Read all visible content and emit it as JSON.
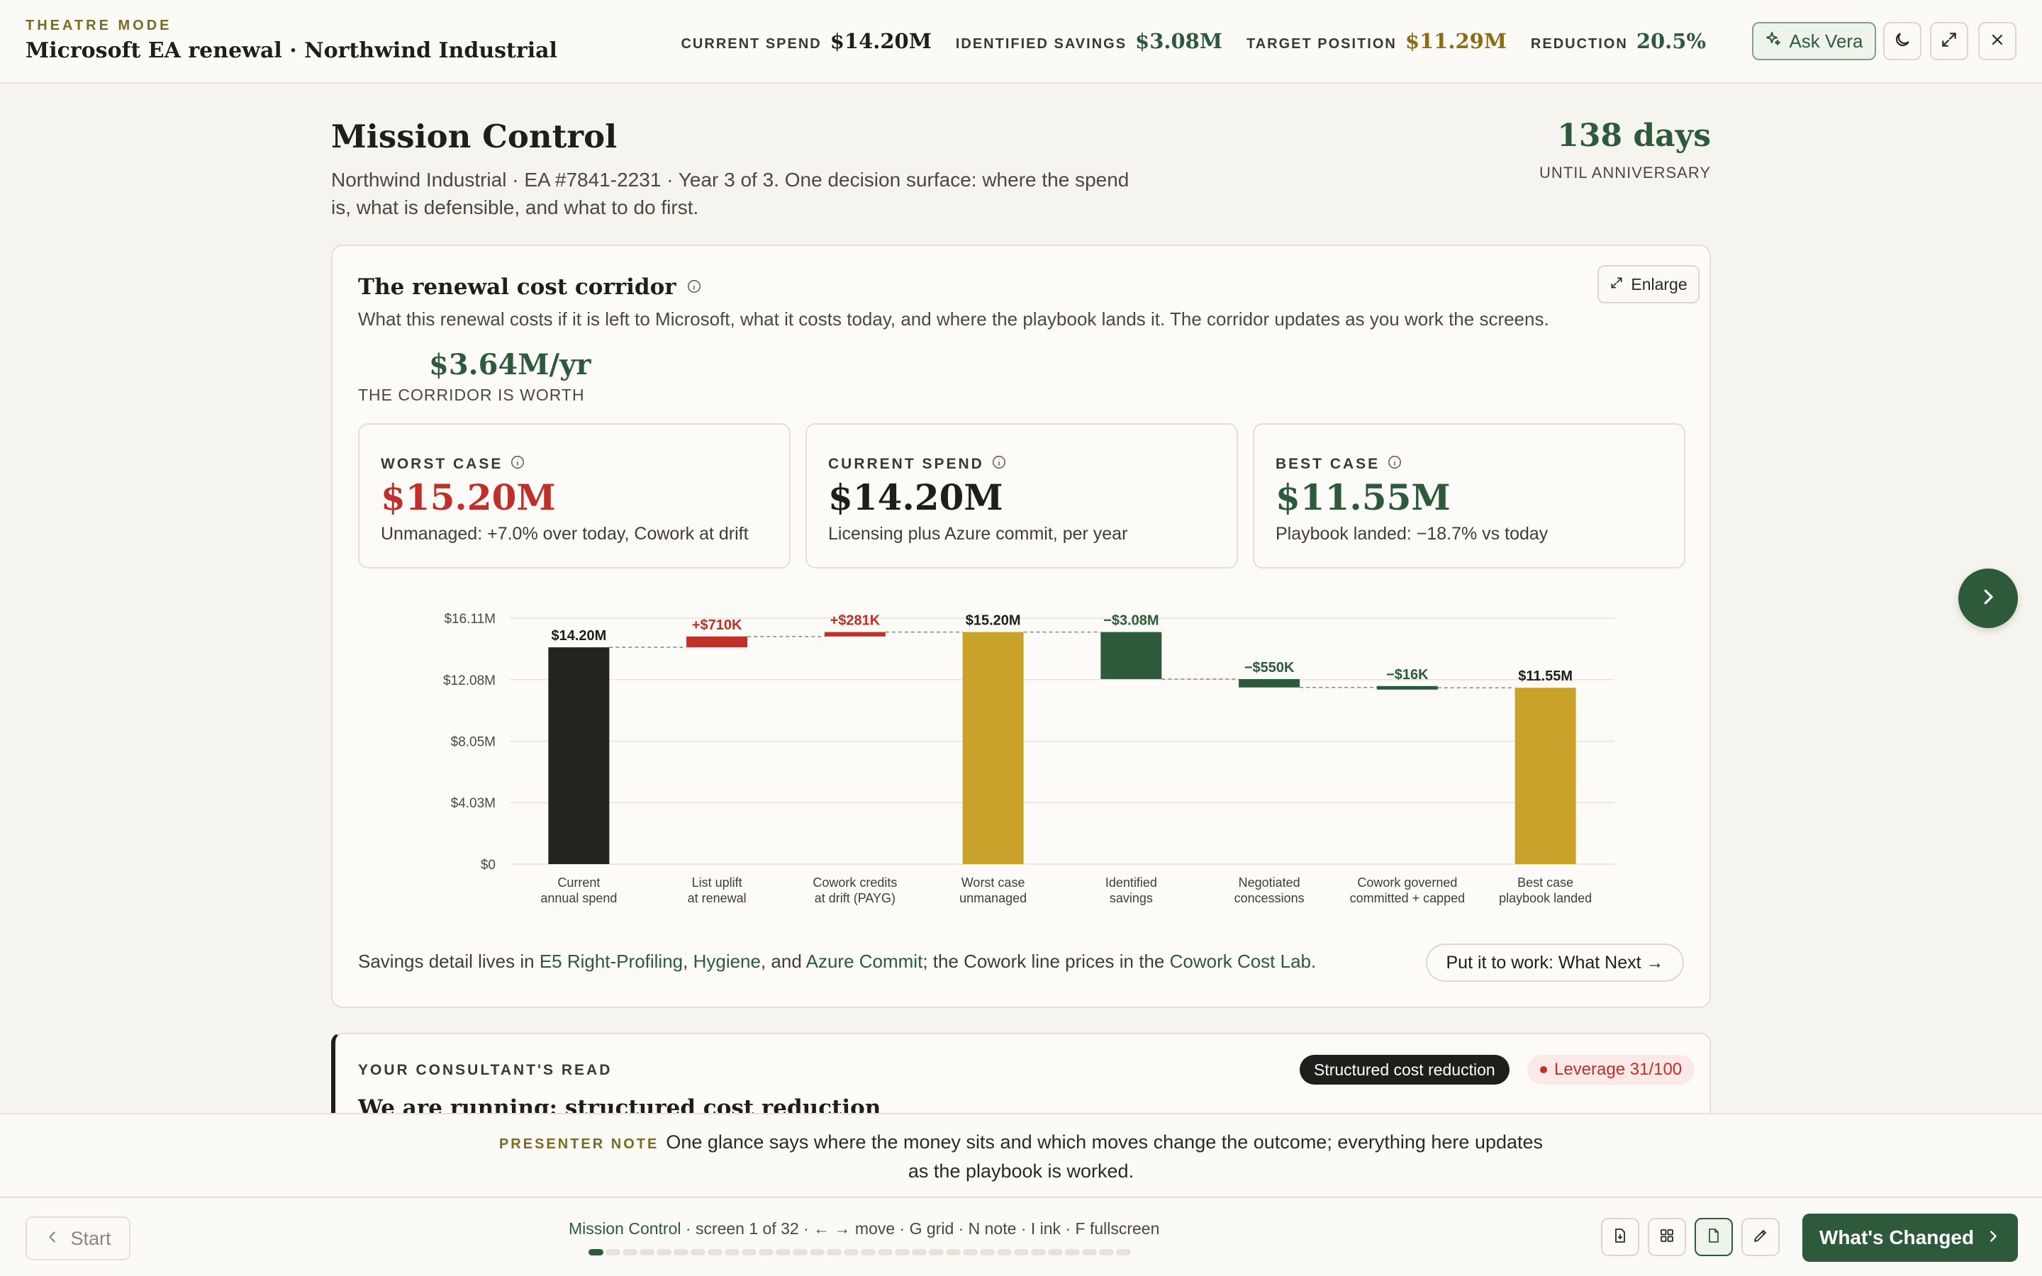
{
  "topbar": {
    "mode_label": "THEATRE MODE",
    "title": "Microsoft EA renewal · Northwind Industrial",
    "stats": [
      {
        "label": "CURRENT SPEND",
        "value": "$14.20M",
        "color": "#1f1e1a"
      },
      {
        "label": "IDENTIFIED SAVINGS",
        "value": "$3.08M",
        "color": "#2c5a3a"
      },
      {
        "label": "TARGET POSITION",
        "value": "$11.29M",
        "color": "#8a6d14"
      },
      {
        "label": "REDUCTION",
        "value": "20.5%",
        "color": "#2c5a3a"
      }
    ],
    "ask_label": "Ask Vera",
    "icons": [
      "sparkle-icon",
      "moon-icon",
      "fullscreen-icon",
      "close-icon"
    ]
  },
  "page": {
    "title": "Mission Control",
    "subtitle": "Northwind Industrial · EA #7841-2231 · Year 3 of 3. One decision surface: where the spend is, what is defensible, and what to do first.",
    "days_value": "138 days",
    "days_label": "UNTIL ANNIVERSARY"
  },
  "card": {
    "title": "The renewal cost corridor",
    "description": "What this renewal costs if it is left to Microsoft, what it costs today, and where the playbook lands it. The corridor updates as you work the screens.",
    "enlarge_label": "Enlarge",
    "corridor_value": "$3.64M/yr",
    "corridor_label": "THE CORRIDOR IS WORTH",
    "kpis": [
      {
        "label": "WORST CASE",
        "value": "$15.20M",
        "note": "Unmanaged: +7.0% over today, Cowork at drift",
        "color": "#c0302a"
      },
      {
        "label": "CURRENT SPEND",
        "value": "$14.20M",
        "note": "Licensing plus Azure commit, per year",
        "color": "#1f1e1a"
      },
      {
        "label": "BEST CASE",
        "value": "$11.55M",
        "note": "Playbook landed: −18.7% vs today",
        "color": "#2c5a3a"
      }
    ],
    "footer": {
      "prefix": "Savings detail lives in ",
      "link1": "E5 Right-Profiling",
      "sep1": ", ",
      "link2": "Hygiene",
      "sep2": ", and ",
      "link3": "Azure Commit",
      "mid": "; the Cowork line prices in the ",
      "link4": "Cowork Cost Lab",
      "suffix": "."
    },
    "work_button": "Put it to work: What Next →"
  },
  "chart_data": {
    "type": "bar",
    "subtype": "waterfall",
    "unit": "$M",
    "ylim": [
      0,
      16.11
    ],
    "yticks": [
      {
        "value": 0,
        "label": "$0"
      },
      {
        "value": 4.03,
        "label": "$4.03M"
      },
      {
        "value": 8.05,
        "label": "$8.05M"
      },
      {
        "value": 12.08,
        "label": "$12.08M"
      },
      {
        "value": 16.11,
        "label": "$16.11M"
      }
    ],
    "grid": true,
    "bars": [
      {
        "category": [
          "Current",
          "annual spend"
        ],
        "kind": "total",
        "start": 0,
        "end": 14.2,
        "label": "$14.20M",
        "color": "#24231e",
        "label_color": "#1f1e1a"
      },
      {
        "category": [
          "List uplift",
          "at renewal"
        ],
        "kind": "delta",
        "start": 14.2,
        "end": 14.91,
        "label": "+$710K",
        "color": "#c0302a",
        "label_color": "#c0302a"
      },
      {
        "category": [
          "Cowork credits",
          "at drift (PAYG)"
        ],
        "kind": "delta",
        "start": 14.91,
        "end": 15.2,
        "label": "+$281K",
        "color": "#c0302a",
        "label_color": "#c0302a"
      },
      {
        "category": [
          "Worst case",
          "unmanaged"
        ],
        "kind": "total",
        "start": 0,
        "end": 15.2,
        "label": "$15.20M",
        "color": "#c9a22a",
        "label_color": "#1f1e1a"
      },
      {
        "category": [
          "Identified",
          "savings"
        ],
        "kind": "delta",
        "start": 15.2,
        "end": 12.12,
        "label": "−$3.08M",
        "color": "#2c5a3a",
        "label_color": "#2c5a3a"
      },
      {
        "category": [
          "Negotiated",
          "concessions"
        ],
        "kind": "delta",
        "start": 12.12,
        "end": 11.57,
        "label": "−$550K",
        "color": "#2c5a3a",
        "label_color": "#2c5a3a"
      },
      {
        "category": [
          "Cowork governed",
          "committed + capped"
        ],
        "kind": "delta",
        "start": 11.57,
        "end": 11.55,
        "label": "−$16K",
        "color": "#2c5a3a",
        "label_color": "#2c5a3a"
      },
      {
        "category": [
          "Best case",
          "playbook landed"
        ],
        "kind": "total",
        "start": 0,
        "end": 11.55,
        "label": "$11.55M",
        "color": "#c9a22a",
        "label_color": "#1f1e1a"
      }
    ]
  },
  "consultant": {
    "label": "YOUR CONSULTANT'S READ",
    "title": "We are running: structured cost reduction",
    "badge_strategy": "Structured cost reduction",
    "badge_leverage": "Leverage 31/100"
  },
  "presenter": {
    "tag": "PRESENTER NOTE",
    "text": "One glance says where the money sits and which moves change the outcome; everything here updates as the playbook is worked."
  },
  "bottom": {
    "start_label": "Start",
    "current_screen": "Mission Control",
    "hint": " · screen 1 of 32 · ← → move · G grid · N note · I ink · F fullscreen",
    "total_screens": 32,
    "current_index": 1,
    "next_label": "What's Changed"
  }
}
